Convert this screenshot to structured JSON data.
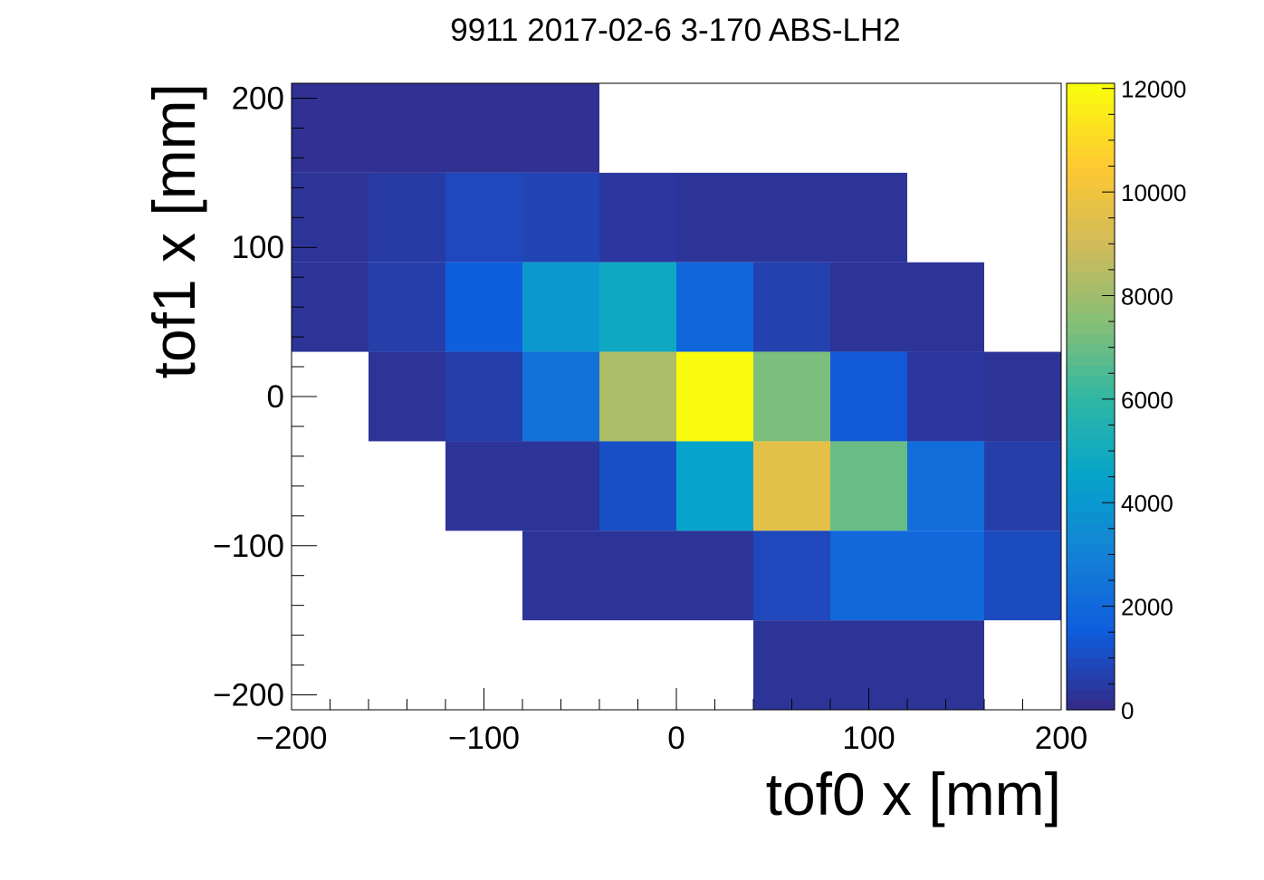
{
  "chart_data": {
    "type": "heatmap",
    "title": "9911 2017-02-6 3-170 ABS-LH2",
    "xlabel": "tof0 x [mm]",
    "ylabel": "tof1 x [mm]",
    "xlim": [
      -200,
      200
    ],
    "ylim": [
      -210,
      210
    ],
    "zlim": [
      0,
      12000
    ],
    "x_edges": [
      -200,
      -160,
      -120,
      -80,
      -40,
      0,
      40,
      80,
      120,
      160,
      200
    ],
    "y_edges": [
      -210,
      -150,
      -90,
      -30,
      30,
      90,
      150,
      210
    ],
    "x_ticks": [
      -200,
      -100,
      0,
      100,
      200
    ],
    "x_tick_labels": [
      "−200",
      "−100",
      "0",
      "100",
      "200"
    ],
    "y_ticks": [
      -200,
      -100,
      0,
      100,
      200
    ],
    "y_tick_labels": [
      "−200",
      "−100",
      "0",
      "100",
      "200"
    ],
    "z_ticks": [
      0,
      2000,
      4000,
      6000,
      8000,
      10000,
      12000
    ],
    "z_tick_labels": [
      "0",
      "2000",
      "4000",
      "6000",
      "8000",
      "10000",
      "12000"
    ],
    "values_rows_top_to_bottom": [
      [
        200,
        200,
        200,
        200,
        0,
        0,
        0,
        0,
        0,
        0
      ],
      [
        300,
        500,
        900,
        800,
        400,
        300,
        300,
        300,
        0,
        0
      ],
      [
        300,
        600,
        1600,
        4000,
        4800,
        1900,
        700,
        300,
        300,
        0
      ],
      [
        0,
        300,
        600,
        2300,
        8300,
        12000,
        7300,
        1400,
        400,
        300
      ],
      [
        0,
        0,
        300,
        300,
        1100,
        4500,
        9600,
        7000,
        2200,
        600
      ],
      [
        0,
        0,
        0,
        300,
        300,
        300,
        900,
        2000,
        2000,
        1000
      ],
      [
        0,
        0,
        0,
        0,
        0,
        0,
        300,
        300,
        300,
        0
      ]
    ],
    "grid": false,
    "colorbar": "right",
    "colormap_stops": [
      "#352a87",
      "#0f5cdd",
      "#1481d6",
      "#06a4ca",
      "#2eb7a4",
      "#87bf77",
      "#d1bb59",
      "#fec832",
      "#f9fb0e"
    ]
  }
}
